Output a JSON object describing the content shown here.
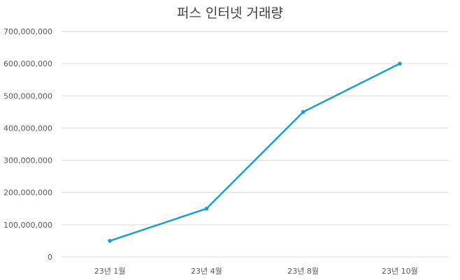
{
  "chart_data": {
    "type": "line",
    "title": "퍼스 인터넷 거래량",
    "xlabel": "",
    "ylabel": "",
    "categories": [
      "23년 1월",
      "23년 4월",
      "23년 8월",
      "23년 10월"
    ],
    "series": [
      {
        "values": [
          50000000,
          150000000,
          450000000,
          600000000
        ]
      }
    ],
    "ylim": [
      0,
      700000000
    ],
    "yticks": [
      "0",
      "100,000,000",
      "200,000,000",
      "300,000,000",
      "400,000,000",
      "500,000,000",
      "600,000,000",
      "700,000,000"
    ],
    "grid": true,
    "legend": "none",
    "colors": {
      "line": "#1A9FC8",
      "grid": "#D9D9D9",
      "text": "#595959"
    }
  }
}
